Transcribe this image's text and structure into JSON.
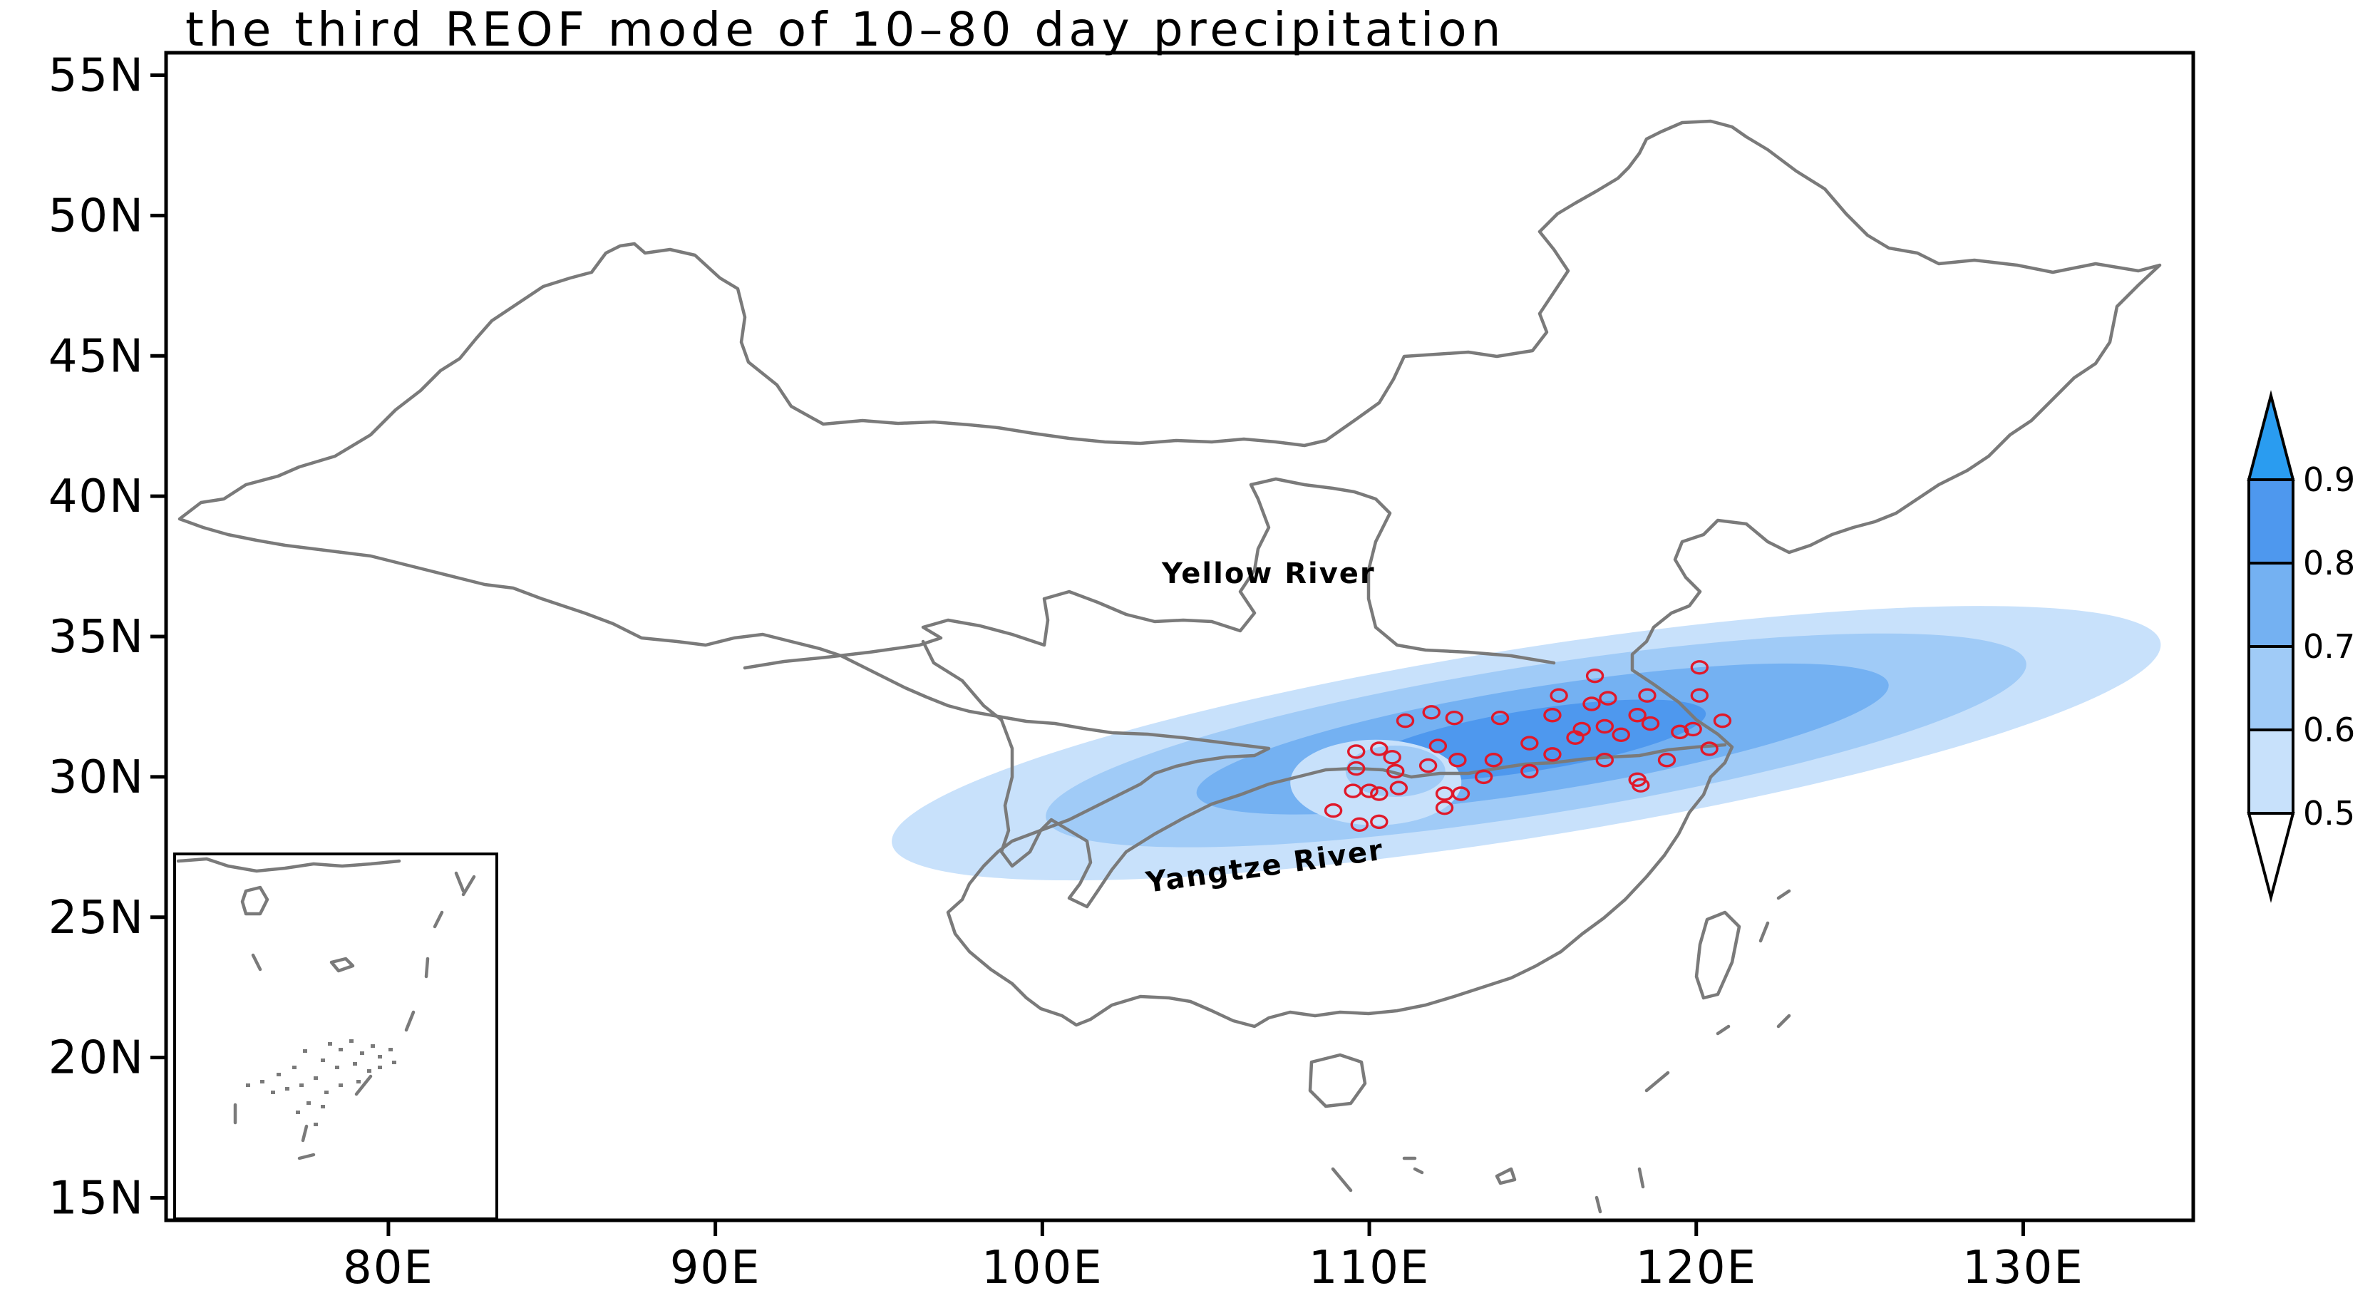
{
  "title": "the third REOF mode of 10–80 day precipitation",
  "map": {
    "lon_range": [
      73.2,
      135.2
    ],
    "lat_range": [
      14.2,
      55.8
    ],
    "x_ticks": [
      "80E",
      "90E",
      "100E",
      "110E",
      "120E",
      "130E"
    ],
    "y_ticks": [
      "55N",
      "50N",
      "45N",
      "40N",
      "35N",
      "30N",
      "25N",
      "20N",
      "15N"
    ],
    "labels": {
      "yellow_river": "Yellow River",
      "yangtze_river": "Yangtze River"
    },
    "colors": {
      "yellow_river": "#f0862a",
      "yangtze_river": "#1c4bf0",
      "station": "#e0192a",
      "coastline": "#7a7a7a"
    },
    "inset": "South China Sea islands inset"
  },
  "colorbar": {
    "levels": [
      "0.5",
      "0.6",
      "0.7",
      "0.8",
      "0.9"
    ],
    "colors": [
      "#ffffff",
      "#c8e1fb",
      "#a0cbf7",
      "#74b1f2",
      "#4e98ee",
      "#2a9cf0"
    ],
    "extend": "both"
  },
  "chart_data": {
    "type": "heatmap",
    "title": "the third REOF mode of 10–80 day precipitation",
    "xlabel": "",
    "ylabel": "",
    "xlim": [
      73.2,
      135.2
    ],
    "ylim": [
      14.2,
      55.8
    ],
    "x_ticks": [
      "80E",
      "90E",
      "100E",
      "110E",
      "120E",
      "130E"
    ],
    "y_ticks": [
      "55N",
      "50N",
      "45N",
      "40N",
      "35N",
      "30N",
      "25N",
      "20N",
      "15N"
    ],
    "contour_levels": [
      0.5,
      0.6,
      0.7,
      0.8,
      0.9
    ],
    "contour_region": {
      "description": "loading maximum along middle-lower Yangtze River",
      "center_lon": 114.8,
      "center_lat": 31.2,
      "peak_value": 0.85
    },
    "stations": [
      [
        109.6,
        30.9
      ],
      [
        110.3,
        31.0
      ],
      [
        109.6,
        30.3
      ],
      [
        110.0,
        29.5
      ],
      [
        109.5,
        29.5
      ],
      [
        110.3,
        29.4
      ],
      [
        110.7,
        30.7
      ],
      [
        110.8,
        30.2
      ],
      [
        110.9,
        29.6
      ],
      [
        108.9,
        28.8
      ],
      [
        109.7,
        28.3
      ],
      [
        110.3,
        28.4
      ],
      [
        111.1,
        32.0
      ],
      [
        111.9,
        32.3
      ],
      [
        111.8,
        30.4
      ],
      [
        112.1,
        31.1
      ],
      [
        112.3,
        29.4
      ],
      [
        112.6,
        32.1
      ],
      [
        112.7,
        30.6
      ],
      [
        112.3,
        28.9
      ],
      [
        112.8,
        29.4
      ],
      [
        113.5,
        30.0
      ],
      [
        113.8,
        30.6
      ],
      [
        114.0,
        32.1
      ],
      [
        114.9,
        31.2
      ],
      [
        114.9,
        30.2
      ],
      [
        115.6,
        30.8
      ],
      [
        115.6,
        32.2
      ],
      [
        115.8,
        32.9
      ],
      [
        116.3,
        31.4
      ],
      [
        116.5,
        31.7
      ],
      [
        116.9,
        33.6
      ],
      [
        116.8,
        32.6
      ],
      [
        117.3,
        32.8
      ],
      [
        117.2,
        31.8
      ],
      [
        117.2,
        30.6
      ],
      [
        117.7,
        31.5
      ],
      [
        118.2,
        32.2
      ],
      [
        118.2,
        29.9
      ],
      [
        118.3,
        29.7
      ],
      [
        118.5,
        32.9
      ],
      [
        118.6,
        31.9
      ],
      [
        119.1,
        30.6
      ],
      [
        119.5,
        31.6
      ],
      [
        119.9,
        31.7
      ],
      [
        120.1,
        32.9
      ],
      [
        120.1,
        33.9
      ],
      [
        120.4,
        31.0
      ],
      [
        120.8,
        32.0
      ]
    ]
  }
}
